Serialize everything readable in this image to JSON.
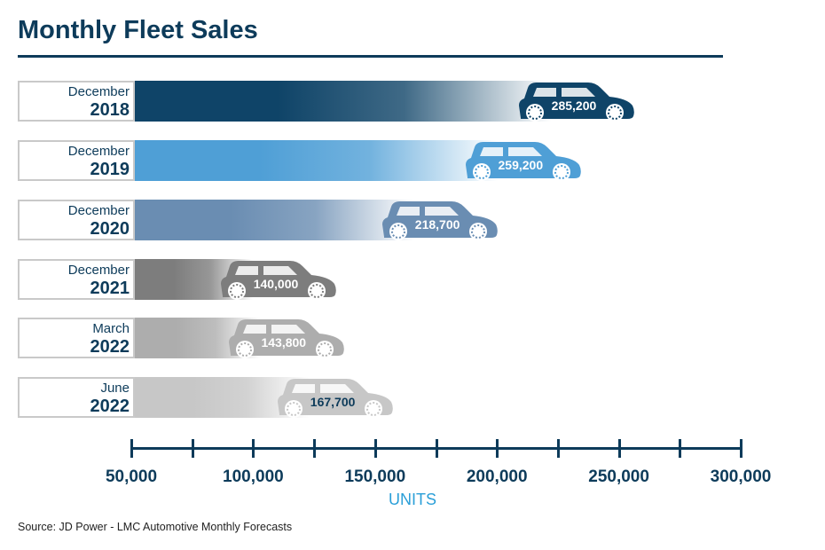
{
  "chart_data": {
    "type": "bar",
    "title": "Monthly Fleet Sales",
    "xlabel": "UNITS",
    "orientation": "horizontal",
    "categories": [
      [
        "December",
        "2018"
      ],
      [
        "December",
        "2019"
      ],
      [
        "December",
        "2020"
      ],
      [
        "December",
        "2021"
      ],
      [
        "March",
        "2022"
      ],
      [
        "June",
        "2022"
      ]
    ],
    "values": [
      285200,
      259200,
      218700,
      140000,
      143800,
      167700
    ],
    "value_labels": [
      "285,200",
      "259,200",
      "218,700",
      "140,000",
      "143,800",
      "167,700"
    ],
    "xlim": [
      50000,
      300000
    ],
    "tick_labels": [
      "50,000",
      "100,000",
      "150,000",
      "200,000",
      "250,000",
      "300,000"
    ],
    "tick_values": [
      50000,
      100000,
      150000,
      200000,
      250000,
      300000
    ],
    "minor_tick_step": 25000,
    "colors": [
      "#0f4468",
      "#4f9fd6",
      "#6a8db2",
      "#7d7d7d",
      "#adadad",
      "#c7c7c7"
    ],
    "value_label_colors": [
      "#ffffff",
      "#ffffff",
      "#ffffff",
      "#ffffff",
      "#ffffff",
      "#0d3b5a"
    ],
    "grid": false,
    "legend": "none"
  },
  "source": "Source:  JD Power - LMC Automotive Monthly Forecasts"
}
